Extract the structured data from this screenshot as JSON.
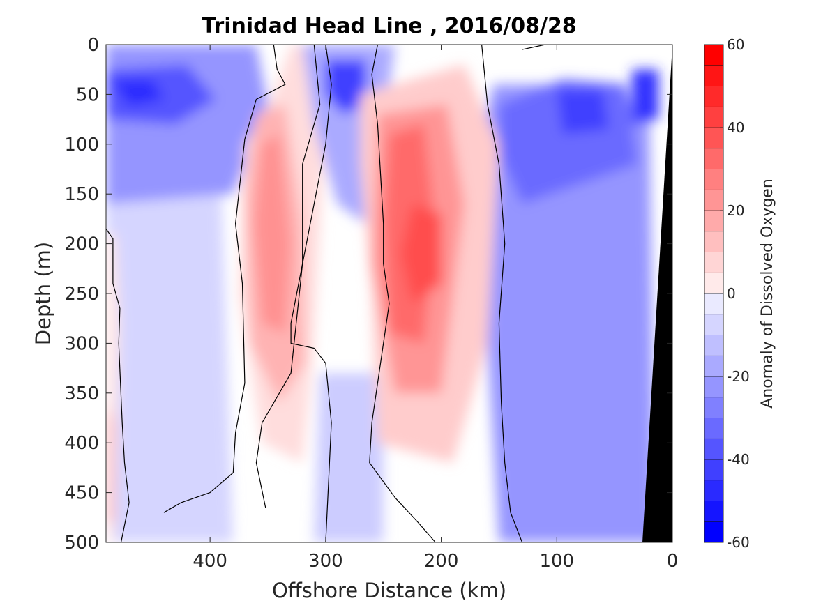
{
  "chart_data": {
    "type": "contour",
    "title": "Trinidad Head Line , 2016/08/28",
    "xlabel": "Offshore Distance (km)",
    "ylabel": "Depth (m)",
    "xlim": [
      490,
      0
    ],
    "ylim": [
      0,
      500
    ],
    "x_reversed": true,
    "y_reversed": true,
    "xticks": [
      400,
      300,
      200,
      100,
      0
    ],
    "yticks": [
      0,
      50,
      100,
      150,
      200,
      250,
      300,
      350,
      400,
      450,
      500
    ],
    "colorbar": {
      "label": "Anomaly of Dissolved Oxygen",
      "range": [
        -60,
        60
      ],
      "ticks": [
        60,
        40,
        20,
        0,
        -20,
        -40,
        -60
      ],
      "levels": [
        -60,
        -55,
        -50,
        -45,
        -40,
        -35,
        -30,
        -25,
        -20,
        -15,
        -10,
        -5,
        0,
        5,
        10,
        15,
        20,
        25,
        30,
        35,
        40,
        45,
        50,
        55,
        60
      ],
      "colormap": "blue-white-red",
      "low_color": "#0000ff",
      "high_color": "#ff0000"
    },
    "zero_contour_color": "#000000",
    "land_mask_color": "#000000",
    "features": [
      {
        "name": "surface negative anomaly",
        "x_center": 470,
        "depth_center": 45,
        "value": -45
      },
      {
        "name": "west positive anomaly",
        "x_center": 485,
        "depth_center": 380,
        "value": 10
      },
      {
        "name": "positive anomaly tongue",
        "x_center": 340,
        "depth_center": 200,
        "value": 25
      },
      {
        "name": "subsurface negative anomaly",
        "x_center": 280,
        "depth_center": 40,
        "value": -45
      },
      {
        "name": "strong positive anomaly core",
        "x_center": 220,
        "depth_center": 220,
        "value": 35
      },
      {
        "name": "nearshore negative anomaly",
        "x_center": 80,
        "depth_center": 60,
        "value": -40
      },
      {
        "name": "coastal negative anomaly",
        "x_center": 20,
        "depth_center": 40,
        "value": -45
      }
    ]
  }
}
